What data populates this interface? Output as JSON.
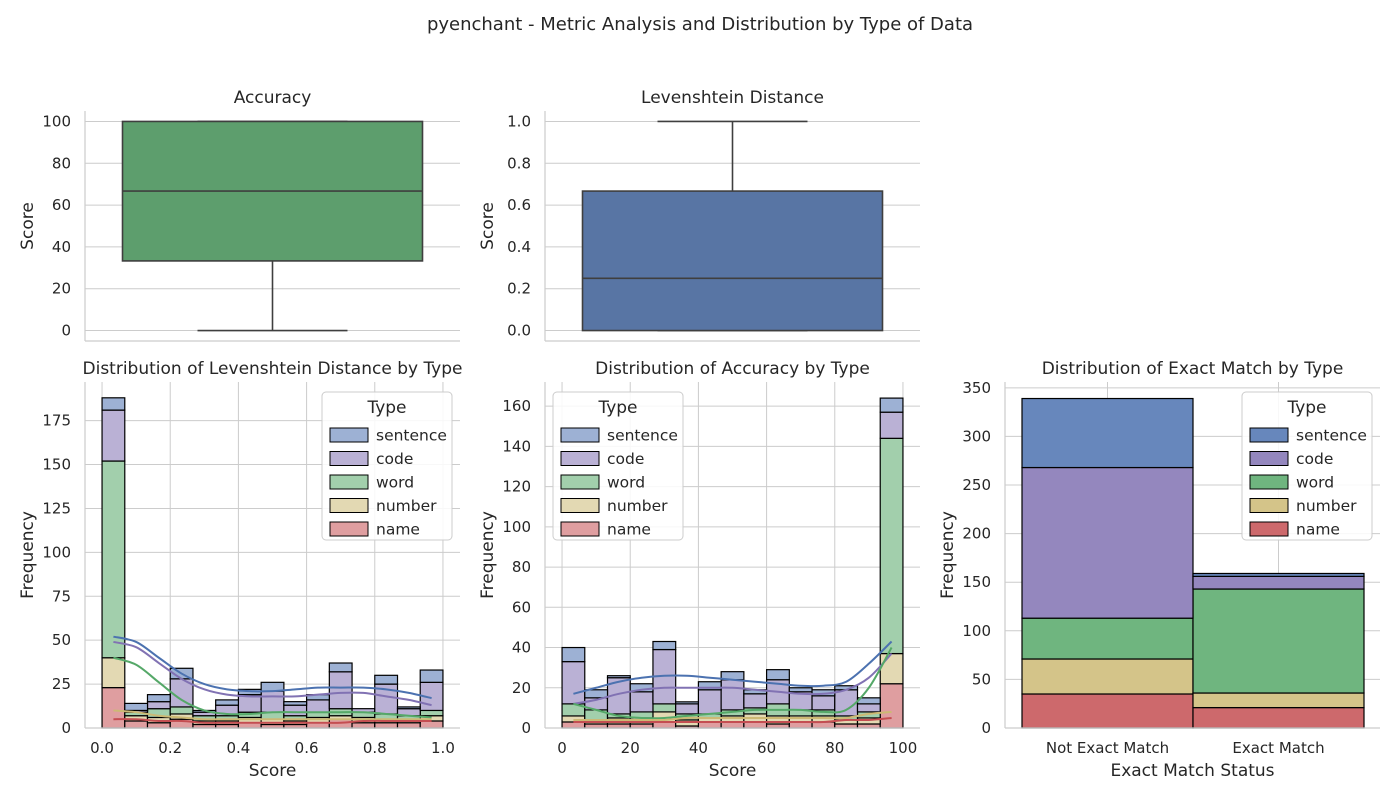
{
  "figure": {
    "suptitle": "pyenchant - Metric Analysis and Distribution by Type of Data"
  },
  "colors": {
    "sentence": "#4c72b0",
    "code": "#8172b3",
    "word": "#55a868",
    "number": "#ccb974",
    "name": "#c44e52",
    "accuracy_box": "#5d9e6d",
    "levenshtein_box": "#5875a4"
  },
  "chart_data": [
    {
      "id": "accuracy_box",
      "type": "box",
      "title": "Accuracy",
      "xlabel": "",
      "ylabel": "Score",
      "ylim": [
        -5,
        105
      ],
      "yticks": [
        0,
        20,
        40,
        60,
        80,
        100
      ],
      "box": {
        "whisker_low": 0,
        "q1": 33.3,
        "median": 66.7,
        "q3": 100,
        "whisker_high": 100
      },
      "color": "#5d9e6d",
      "grid": true
    },
    {
      "id": "levenshtein_box",
      "type": "box",
      "title": "Levenshtein Distance",
      "xlabel": "",
      "ylabel": "Score",
      "ylim": [
        -0.05,
        1.05
      ],
      "yticks": [
        "0.0",
        "0.2",
        "0.4",
        "0.6",
        "0.8",
        "1.0"
      ],
      "box": {
        "whisker_low": 0,
        "q1": 0,
        "median": 0.25,
        "q3": 0.667,
        "whisker_high": 1.0
      },
      "color": "#5875a4",
      "grid": true
    },
    {
      "id": "lev_hist",
      "type": "bar",
      "stacked": true,
      "title": "Distribution of Levenshtein Distance by Type",
      "xlabel": "Score",
      "ylabel": "Frequency",
      "xlim": [
        -0.05,
        1.05
      ],
      "ylim": [
        0,
        197
      ],
      "xticks": [
        "0.0",
        "0.2",
        "0.4",
        "0.6",
        "0.8",
        "1.0"
      ],
      "yticks": [
        0,
        25,
        50,
        75,
        100,
        125,
        150,
        175
      ],
      "bin_width": 0.0667,
      "bin_starts": [
        0,
        0.0667,
        0.1333,
        0.2,
        0.2667,
        0.3333,
        0.4,
        0.4667,
        0.5333,
        0.6,
        0.6667,
        0.7333,
        0.8,
        0.8667,
        0.9333
      ],
      "legend_title": "Type",
      "legend_position": "top-right",
      "series": [
        {
          "name": "name",
          "values": [
            23,
            4,
            3,
            5,
            2,
            2,
            3,
            2,
            2,
            3,
            5,
            3,
            3,
            3,
            4
          ]
        },
        {
          "name": "number",
          "values": [
            17,
            3,
            3,
            3,
            2,
            2,
            3,
            3,
            2,
            3,
            2,
            3,
            2,
            2,
            3
          ]
        },
        {
          "name": "word",
          "values": [
            112,
            2,
            5,
            4,
            3,
            3,
            3,
            4,
            3,
            3,
            4,
            3,
            3,
            2,
            3
          ]
        },
        {
          "name": "code",
          "values": [
            29,
            1,
            4,
            16,
            2,
            6,
            10,
            12,
            6,
            7,
            21,
            2,
            17,
            4,
            16
          ]
        },
        {
          "name": "sentence",
          "values": [
            7,
            4,
            4,
            6,
            1,
            3,
            3,
            5,
            2,
            3,
            5,
            0,
            5,
            1,
            7
          ]
        }
      ],
      "kde": [
        {
          "name": "sentence",
          "values": [
            52,
            49,
            40,
            31,
            25,
            22,
            21,
            21,
            22,
            23,
            23,
            23,
            22,
            20,
            17
          ]
        },
        {
          "name": "code",
          "values": [
            49,
            46,
            37,
            28,
            22,
            19,
            18,
            18,
            18,
            19,
            20,
            20,
            18,
            16,
            13
          ]
        },
        {
          "name": "word",
          "values": [
            40,
            36,
            26,
            16,
            10,
            8,
            8,
            9,
            9,
            9,
            9,
            9,
            8,
            7,
            6
          ]
        },
        {
          "name": "number",
          "values": [
            10,
            9,
            7,
            6,
            5,
            5,
            5,
            5,
            5,
            5,
            5,
            5,
            5,
            5,
            5
          ]
        },
        {
          "name": "name",
          "values": [
            5,
            5,
            4,
            4,
            3,
            3,
            3,
            3,
            3,
            3,
            3,
            4,
            4,
            4,
            4
          ]
        }
      ]
    },
    {
      "id": "acc_hist",
      "type": "bar",
      "stacked": true,
      "title": "Distribution of Accuracy by Type",
      "xlabel": "Score",
      "ylabel": "Frequency",
      "xlim": [
        -5,
        105
      ],
      "ylim": [
        0,
        172
      ],
      "xticks": [
        "0",
        "20",
        "40",
        "60",
        "80",
        "100"
      ],
      "yticks": [
        0,
        20,
        40,
        60,
        80,
        100,
        120,
        140,
        160
      ],
      "bin_width": 6.667,
      "bin_starts": [
        0,
        6.667,
        13.333,
        20,
        26.667,
        33.333,
        40,
        46.667,
        53.333,
        60,
        66.667,
        73.333,
        80,
        86.667,
        93.333
      ],
      "legend_title": "Type",
      "legend_position": "top-left",
      "series": [
        {
          "name": "name",
          "values": [
            3,
            2,
            2,
            2,
            3,
            1,
            3,
            3,
            3,
            2,
            3,
            3,
            2,
            2,
            22
          ]
        },
        {
          "name": "number",
          "values": [
            3,
            2,
            3,
            3,
            5,
            3,
            2,
            3,
            4,
            4,
            3,
            3,
            2,
            3,
            15
          ]
        },
        {
          "name": "word",
          "values": [
            6,
            5,
            2,
            3,
            4,
            3,
            2,
            3,
            3,
            6,
            3,
            3,
            2,
            3,
            107
          ]
        },
        {
          "name": "code",
          "values": [
            21,
            6,
            18,
            10,
            27,
            5,
            12,
            15,
            7,
            12,
            9,
            7,
            13,
            4,
            13
          ]
        },
        {
          "name": "sentence",
          "values": [
            7,
            4,
            1,
            4,
            4,
            1,
            4,
            4,
            2,
            5,
            2,
            3,
            2,
            3,
            7
          ]
        }
      ],
      "kde": [
        {
          "name": "sentence",
          "values": [
            17,
            20,
            23,
            25,
            26,
            26,
            25,
            24,
            23,
            22,
            21,
            21,
            23,
            32,
            43
          ]
        },
        {
          "name": "code",
          "values": [
            12,
            14,
            17,
            19,
            20,
            20,
            20,
            20,
            19,
            18,
            17,
            17,
            19,
            25,
            37
          ]
        },
        {
          "name": "word",
          "values": [
            12,
            9,
            6,
            5,
            5,
            6,
            7,
            8,
            9,
            9,
            9,
            8,
            9,
            20,
            40
          ]
        },
        {
          "name": "number",
          "values": [
            4,
            4,
            4,
            4,
            4,
            5,
            5,
            5,
            5,
            5,
            5,
            5,
            5,
            7,
            8
          ]
        },
        {
          "name": "name",
          "values": [
            3,
            3,
            3,
            3,
            3,
            3,
            3,
            3,
            3,
            3,
            3,
            3,
            4,
            4,
            5
          ]
        }
      ]
    },
    {
      "id": "exact_hist",
      "type": "bar",
      "stacked": true,
      "title": "Distribution of Exact Match by Type",
      "xlabel": "Exact Match Status",
      "ylabel": "Frequency",
      "ylim": [
        0,
        356
      ],
      "categories": [
        "Not Exact Match",
        "Exact Match"
      ],
      "yticks": [
        0,
        50,
        100,
        150,
        200,
        250,
        300,
        350
      ],
      "legend_title": "Type",
      "legend_position": "top-right",
      "series": [
        {
          "name": "name",
          "values": [
            35,
            21
          ]
        },
        {
          "name": "number",
          "values": [
            36,
            15
          ]
        },
        {
          "name": "word",
          "values": [
            42,
            107
          ]
        },
        {
          "name": "code",
          "values": [
            155,
            13
          ]
        },
        {
          "name": "sentence",
          "values": [
            71,
            3
          ]
        }
      ]
    }
  ]
}
